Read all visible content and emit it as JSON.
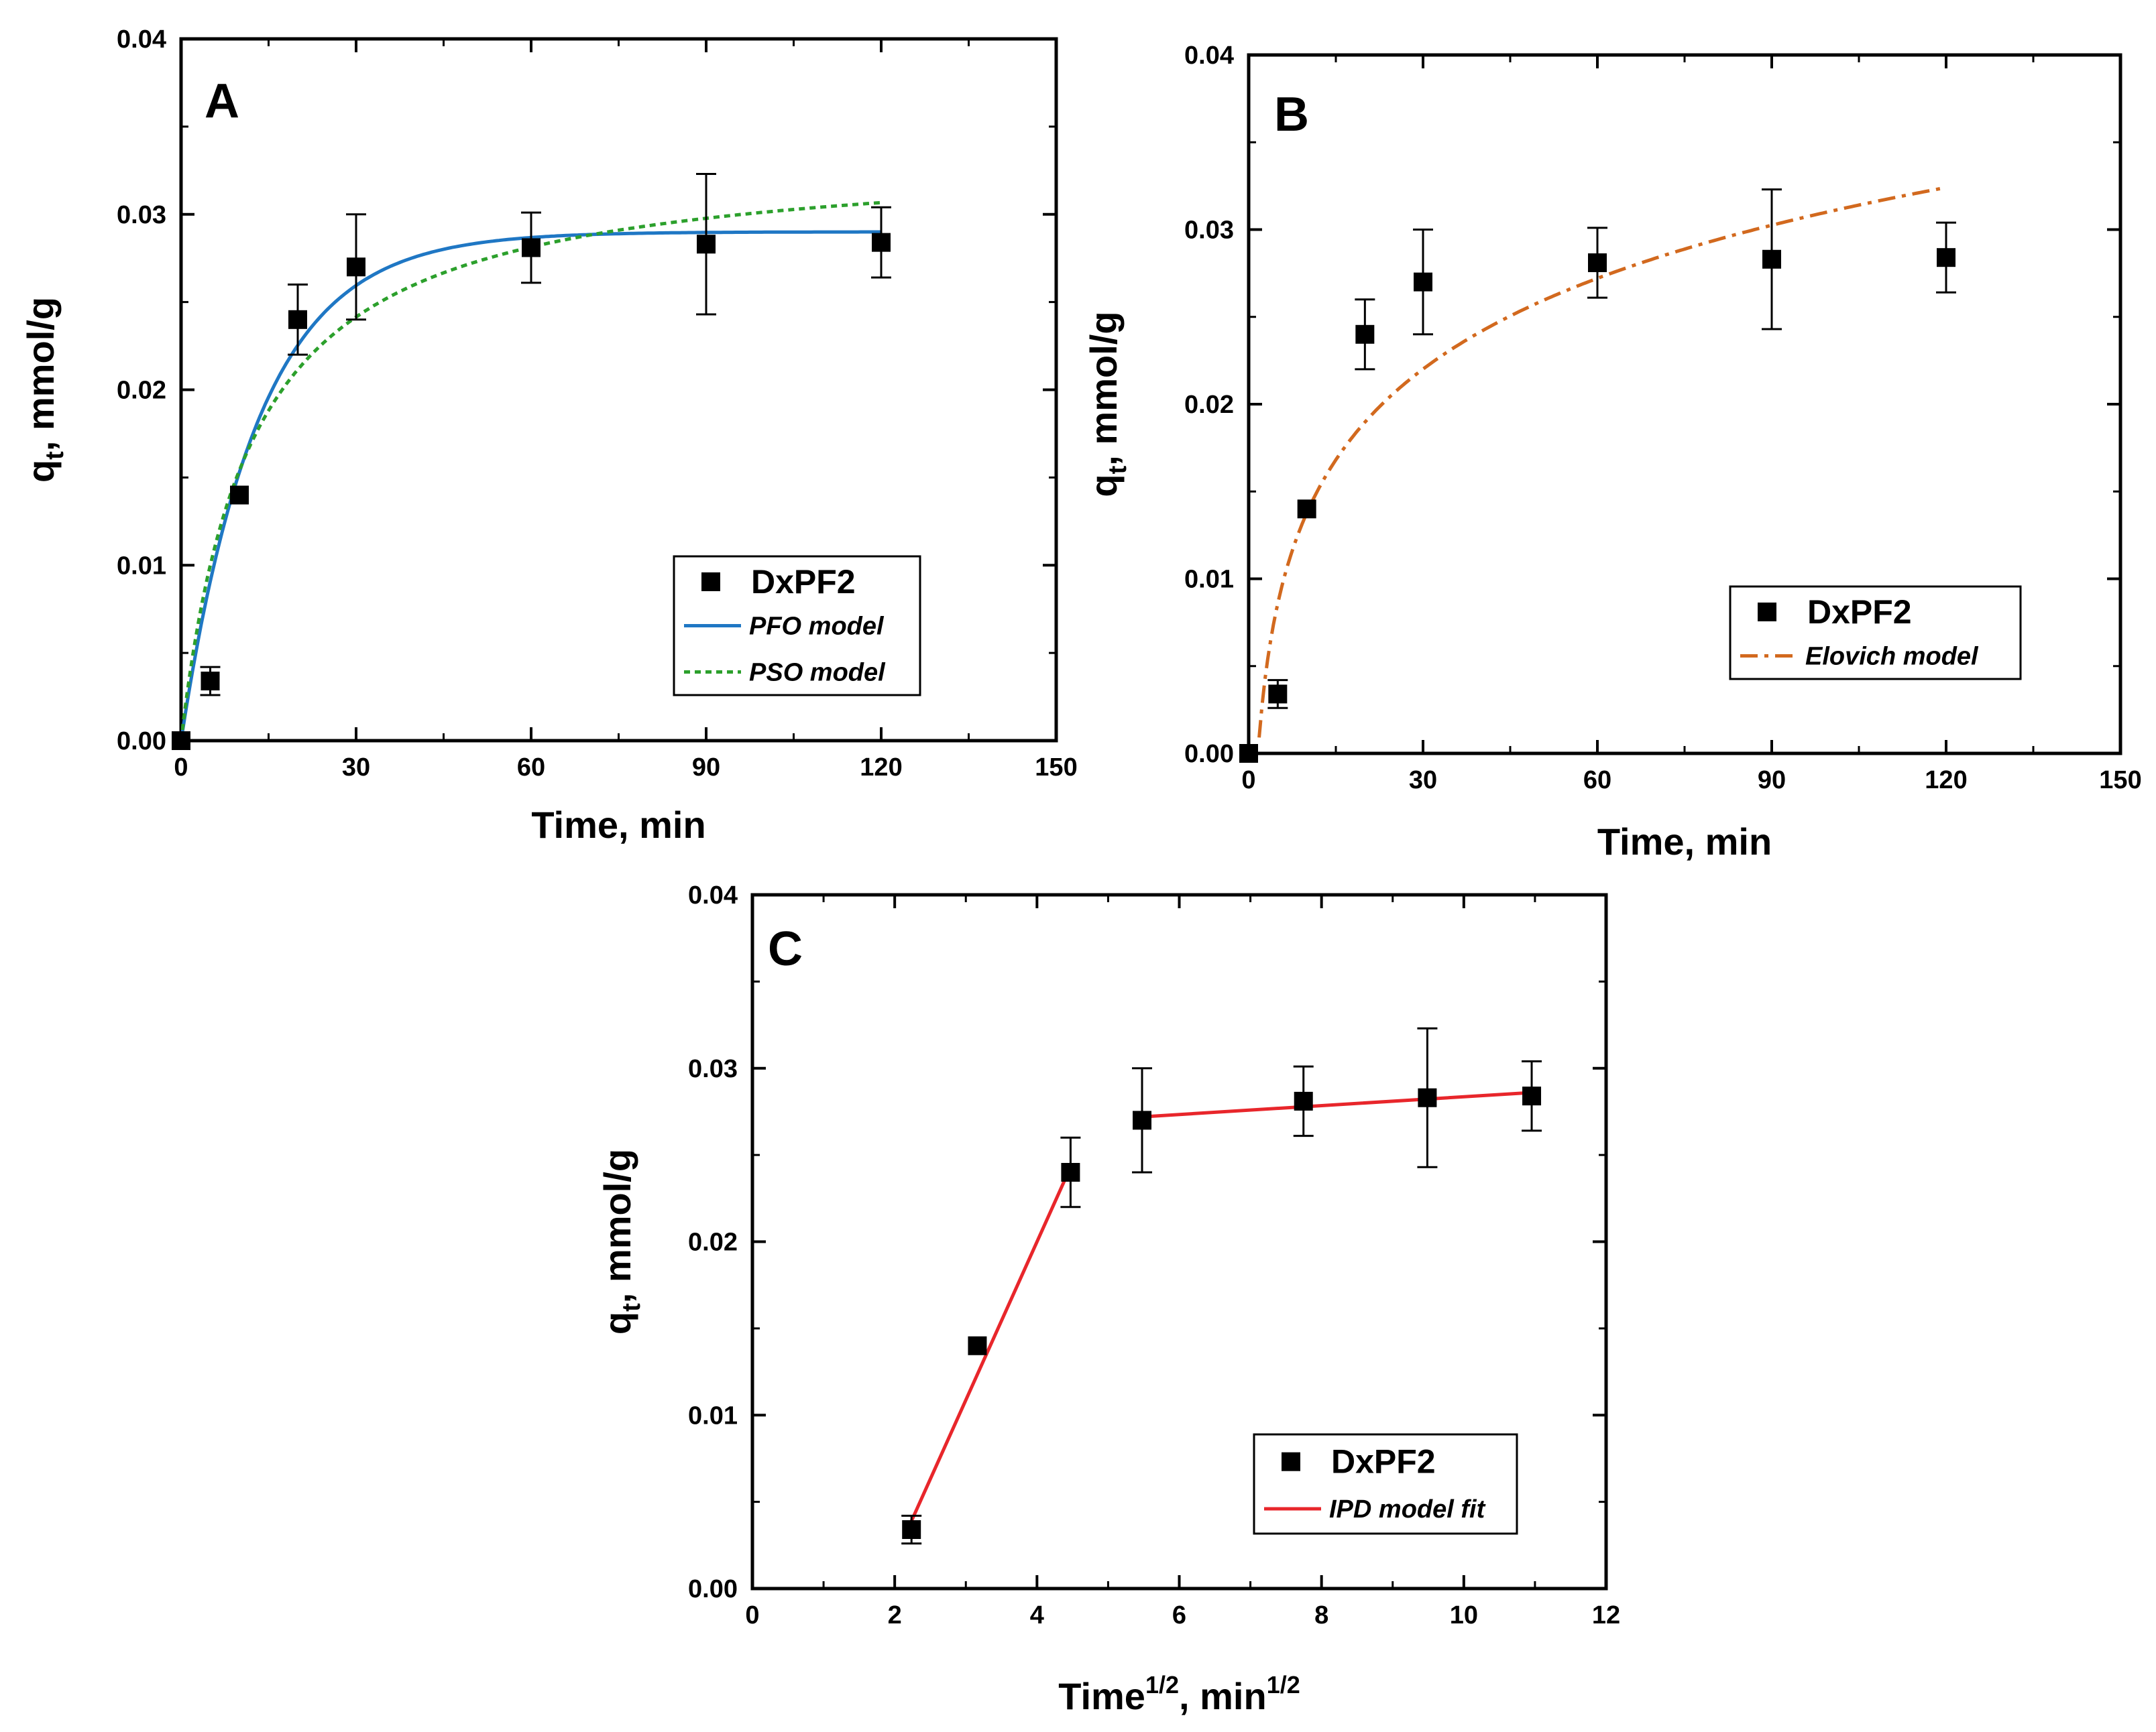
{
  "chart_data": [
    {
      "id": "A",
      "type": "scatter",
      "panel_label": "A",
      "xlabel": "Time, min",
      "ylabel": {
        "main": "q",
        "sub": "t",
        "rest": ", mmol/g"
      },
      "xlim": [
        0,
        150
      ],
      "ylim": [
        0,
        0.04
      ],
      "xticks": [
        "0",
        "30",
        "60",
        "90",
        "120",
        "150"
      ],
      "yticks": [
        "0.00",
        "0.01",
        "0.02",
        "0.03",
        "0.04"
      ],
      "legend_position": "bottom-right",
      "data_series": {
        "name": "DxPF2",
        "x": [
          0,
          5,
          10,
          20,
          30,
          60,
          90,
          120
        ],
        "y": [
          0.0,
          0.0034,
          0.014,
          0.024,
          0.027,
          0.0281,
          0.0283,
          0.0284
        ],
        "err": [
          0,
          0.0008,
          0,
          0.002,
          0.003,
          0.002,
          0.004,
          0.002
        ]
      },
      "fits": [
        {
          "name": "PFO model",
          "model": "pfo",
          "qe": 0.029,
          "k": 0.075,
          "color": "#1f77c4",
          "dash": "solid",
          "x_range": [
            0,
            120
          ]
        },
        {
          "name": "PSO model",
          "model": "pso",
          "qe": 0.0337,
          "k": 2.5,
          "color": "#2ca02c",
          "dash": "dotted",
          "x_range": [
            0,
            120
          ]
        }
      ]
    },
    {
      "id": "B",
      "type": "scatter",
      "panel_label": "B",
      "xlabel": "Time, min",
      "ylabel": {
        "main": "q",
        "sub": "t",
        "rest": ", mmol/g"
      },
      "xlim": [
        0,
        150
      ],
      "ylim": [
        0,
        0.04
      ],
      "xticks": [
        "0",
        "30",
        "60",
        "90",
        "120",
        "150"
      ],
      "yticks": [
        "0.00",
        "0.01",
        "0.02",
        "0.03",
        "0.04"
      ],
      "legend_position": "bottom-right",
      "data_series": {
        "name": "DxPF2",
        "x": [
          0,
          5,
          10,
          20,
          30,
          60,
          90,
          120
        ],
        "y": [
          0.0,
          0.0034,
          0.014,
          0.024,
          0.027,
          0.0281,
          0.0283,
          0.0284
        ],
        "err": [
          0,
          0.0008,
          0,
          0.002,
          0.003,
          0.002,
          0.004,
          0.002
        ]
      },
      "fits": [
        {
          "name": "Elovich model",
          "model": "elovich",
          "a": -0.0035,
          "b": 0.0075,
          "color": "#d2691e",
          "dash": "dashdot",
          "x_range": [
            1.8,
            120
          ]
        }
      ]
    },
    {
      "id": "C",
      "type": "scatter",
      "panel_label": "C",
      "xlabel": {
        "main": "Time",
        "sup1": "1/2",
        "mid": ", min",
        "sup2": "1/2"
      },
      "ylabel": {
        "main": "q",
        "sub": "t",
        "rest": ", mmol/g"
      },
      "xlim": [
        0,
        12
      ],
      "ylim": [
        0,
        0.04
      ],
      "xticks": [
        "0",
        "2",
        "4",
        "6",
        "8",
        "10",
        "12"
      ],
      "yticks": [
        "0.00",
        "0.01",
        "0.02",
        "0.03",
        "0.04"
      ],
      "legend_position": "bottom-right",
      "data_series": {
        "name": "DxPF2",
        "x": [
          2.236,
          3.162,
          4.472,
          5.477,
          7.746,
          9.487,
          10.954
        ],
        "y": [
          0.0034,
          0.014,
          0.024,
          0.027,
          0.0281,
          0.0283,
          0.0284
        ],
        "err": [
          0.0008,
          0,
          0.002,
          0.003,
          0.002,
          0.004,
          0.002
        ]
      },
      "fits": [
        {
          "name": "IPD model fit",
          "model": "linear_segments",
          "color": "#e8262b",
          "dash": "solid",
          "segments": [
            [
              [
                2.236,
                0.0039
              ],
              [
                4.472,
                0.0243
              ]
            ],
            [
              [
                5.477,
                0.0272
              ],
              [
                10.954,
                0.0286
              ]
            ]
          ]
        }
      ]
    }
  ]
}
